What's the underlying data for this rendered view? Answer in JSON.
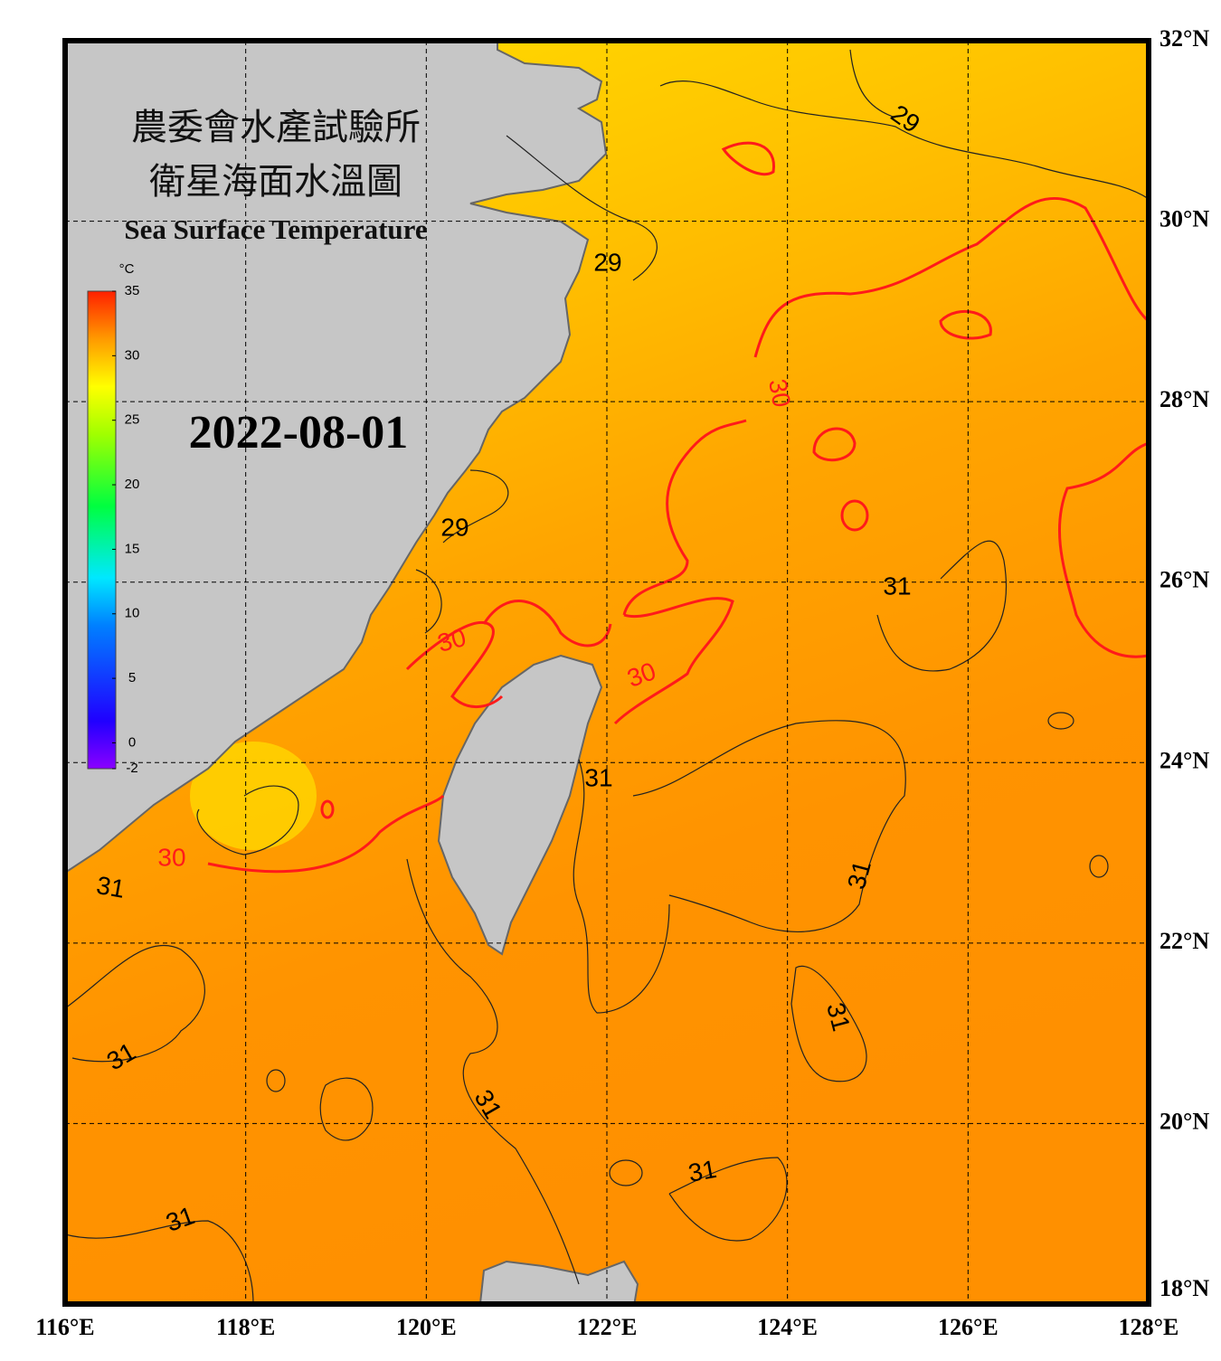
{
  "header": {
    "title_zh_1": "農委會水產試驗所",
    "title_zh_2": "衛星海面水溫圖",
    "title_en": "Sea Surface Temperature",
    "date": "2022-08-01"
  },
  "colorbar": {
    "unit": "°C",
    "lim": [
      -2,
      35
    ],
    "ticks": [
      -2,
      0,
      5,
      10,
      15,
      20,
      25,
      30,
      35
    ]
  },
  "axes": {
    "xlim": [
      116,
      128
    ],
    "ylim": [
      18,
      32
    ],
    "xticks": [
      {
        "value": 116,
        "label": "116°E"
      },
      {
        "value": 118,
        "label": "118°E"
      },
      {
        "value": 120,
        "label": "120°E"
      },
      {
        "value": 122,
        "label": "122°E"
      },
      {
        "value": 124,
        "label": "124°E"
      },
      {
        "value": 126,
        "label": "126°E"
      },
      {
        "value": 128,
        "label": "128°E"
      }
    ],
    "yticks": [
      {
        "value": 18,
        "label": "18°N"
      },
      {
        "value": 20,
        "label": "20°N"
      },
      {
        "value": 22,
        "label": "22°N"
      },
      {
        "value": 24,
        "label": "24°N"
      },
      {
        "value": 26,
        "label": "26°N"
      },
      {
        "value": 28,
        "label": "28°N"
      },
      {
        "value": 30,
        "label": "30°N"
      },
      {
        "value": 32,
        "label": "32°N"
      }
    ]
  },
  "contour_labels": [
    "29",
    "29",
    "29",
    "30",
    "30",
    "30",
    "30",
    "31",
    "31",
    "31",
    "31",
    "31",
    "31",
    "31",
    "31",
    "31"
  ]
}
